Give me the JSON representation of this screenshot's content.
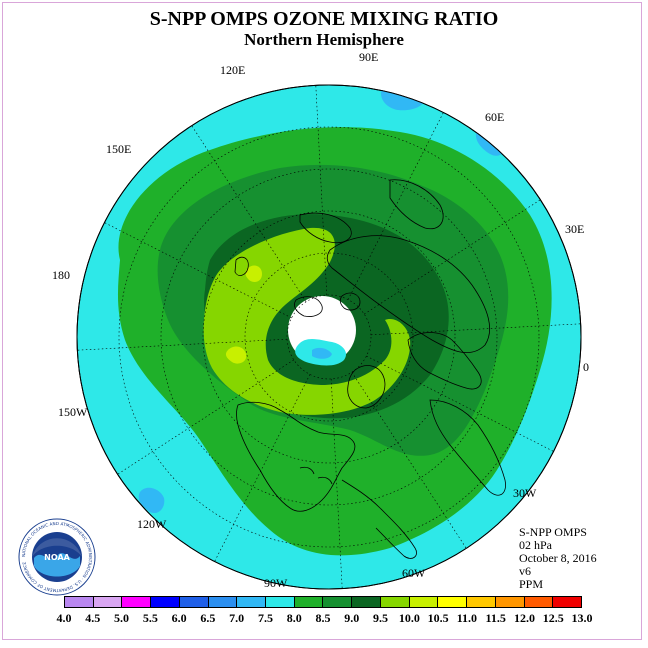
{
  "title": "S-NPP OMPS OZONE MIXING RATIO",
  "subtitle": "Northern Hemisphere",
  "longitude_labels": [
    "90E",
    "60E",
    "30E",
    "0",
    "30W",
    "60W",
    "90W",
    "120W",
    "150W",
    "180",
    "150E",
    "120E"
  ],
  "info": {
    "instrument": "S-NPP OMPS",
    "level": "02 hPa",
    "date": "October 8, 2016",
    "version": "v6",
    "units": "PPM"
  },
  "legend": {
    "ticks": [
      "4.0",
      "4.5",
      "5.0",
      "5.5",
      "6.0",
      "6.5",
      "7.0",
      "7.5",
      "8.0",
      "8.5",
      "9.0",
      "9.5",
      "10.0",
      "10.5",
      "11.0",
      "11.5",
      "12.0",
      "12.5",
      "13.0"
    ],
    "colors": [
      "#b987f0",
      "#d9a6f2",
      "#ff00ff",
      "#0000ff",
      "#1f5fe8",
      "#2b8ff0",
      "#31b8f5",
      "#2ee8e8",
      "#1fb02a",
      "#169030",
      "#0b6622",
      "#86d600",
      "#c8f000",
      "#ffff00",
      "#ffc800",
      "#ff9600",
      "#ff5a00",
      "#f00000",
      "#8b5a3c"
    ]
  },
  "logo": {
    "text": "NOAA",
    "ring_text": "NATIONAL OCEANIC AND ATMOSPHERIC ADMINISTRATION · U.S. DEPARTMENT OF COMMERCE"
  }
}
